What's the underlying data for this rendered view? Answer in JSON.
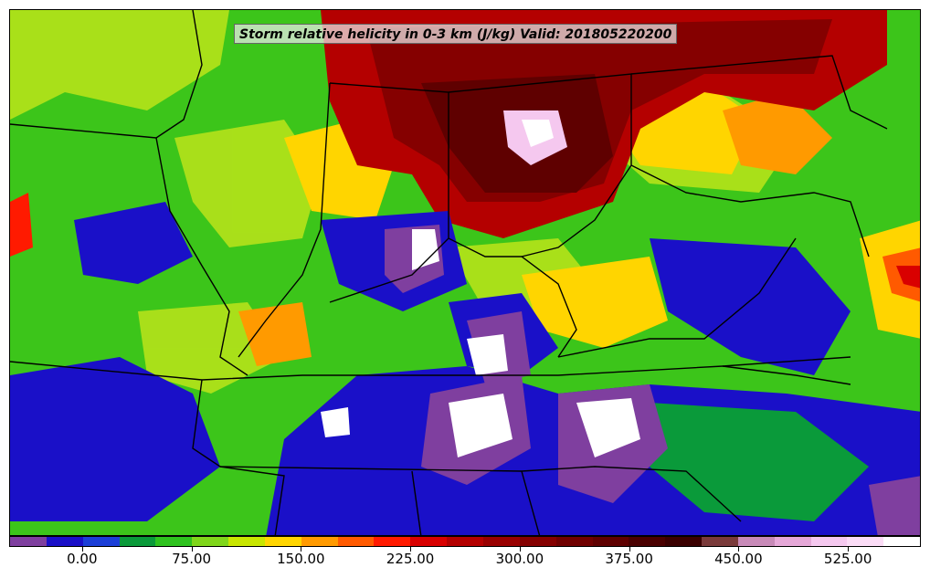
{
  "title": "Storm relative helicity in 0-3 km (J/kg) Valid: 201805220200",
  "colorbar": {
    "colors": [
      "#7f3f9f",
      "#1a10c8",
      "#1c3fd8",
      "#0a9a3a",
      "#2ec21e",
      "#7fd61a",
      "#c8e600",
      "#ffd500",
      "#ff9a00",
      "#ff5a00",
      "#ff1a00",
      "#d90000",
      "#b40000",
      "#990000",
      "#850000",
      "#700000",
      "#5f0000",
      "#4a0000",
      "#3a0000",
      "#7a3a3a",
      "#c88ab8",
      "#e6a8d8",
      "#f5c8ef",
      "#fbdcf6",
      "#ffffff"
    ],
    "tick_labels": [
      "0.00",
      "75.00",
      "150.00",
      "225.00",
      "300.00",
      "375.00",
      "450.00",
      "525.00"
    ],
    "tick_values": [
      0,
      75,
      150,
      225,
      300,
      375,
      450,
      525
    ],
    "range": [
      -50,
      575
    ]
  },
  "legend_colors": {
    "purple": "#7f3f9f",
    "blue": "#1a10c8",
    "green": "#2ec21e",
    "yellow_green": "#c8e600",
    "yellow": "#ffd500",
    "orange": "#ff9a00",
    "red": "#ff1a00",
    "dark_red": "#850000",
    "white": "#ffffff"
  }
}
